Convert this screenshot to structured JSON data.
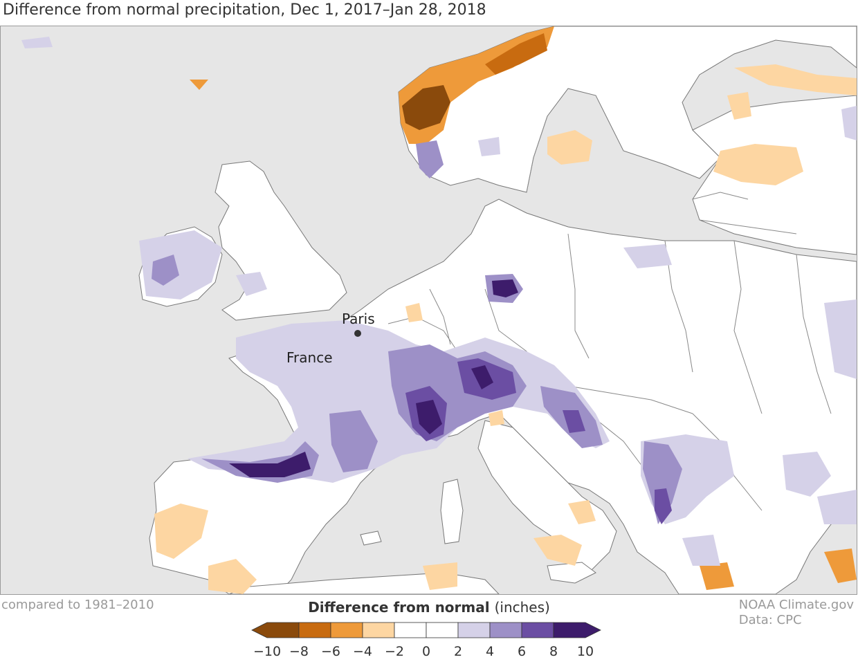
{
  "title": "Difference from normal precipitation, Dec 1, 2017–Jan 28, 2018",
  "baseline_note": "compared to 1981–2010",
  "credit": {
    "line1": "NOAA Climate.gov",
    "line2": "Data: CPC"
  },
  "legend": {
    "title": "Difference from normal",
    "unit": "(inches)",
    "ticks": [
      "−10",
      "−8",
      "−6",
      "−4",
      "−2",
      "0",
      "2",
      "4",
      "6",
      "8",
      "10"
    ],
    "colors": {
      "below_10": "#8a4a0c",
      "below_8": "#c86b10",
      "below_6": "#ee9a3a",
      "below_4": "#fdd6a2",
      "neutral": "#ffffff",
      "above_2": "#d5d1e8",
      "above_4": "#9d90c7",
      "above_6": "#6b4ea3",
      "above_8": "#3d1c6b"
    }
  },
  "map_labels": {
    "paris": "Paris",
    "france": "France"
  },
  "colors": {
    "ocean": "#e6e6e6",
    "land": "#ffffff",
    "border": "#777777"
  }
}
